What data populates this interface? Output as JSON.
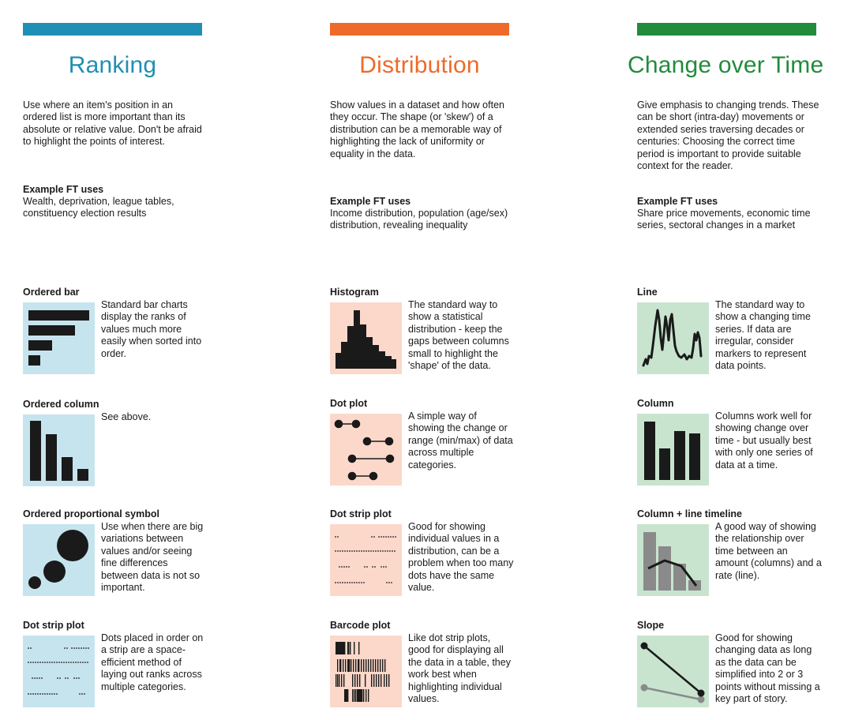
{
  "colors": {
    "ranking": "#1f8fb4",
    "distribution": "#ee6a2a",
    "change": "#228b3c",
    "ranking_bg": "#c6e4ee",
    "distribution_bg": "#fbd8ca",
    "change_bg": "#c8e4cf",
    "mark": "#1a1a1a",
    "mark_grey": "#8a8a8a"
  },
  "columns": [
    {
      "title": "Ranking",
      "description": "Use where an item's position in an ordered list is more important than its absolute or relative value. Don't be afraid to highlight the points of interest.",
      "uses_heading": "Example FT uses",
      "uses_text": "Wealth, deprivation, league tables, constituency election results",
      "charts": [
        {
          "name": "Ordered bar",
          "icon": "ordered-bar-icon",
          "description": "Standard bar charts display the ranks of values much more easily when sorted into order."
        },
        {
          "name": "Ordered column",
          "icon": "ordered-column-icon",
          "description": "See above."
        },
        {
          "name": "Ordered proportional symbol",
          "icon": "proportional-symbol-icon",
          "description": "Use when there are big variations between values and/or seeing fine differences between data is not so important."
        },
        {
          "name": "Dot strip plot",
          "icon": "dot-strip-plot-icon",
          "description": "Dots placed in order on a strip are a space-efficient method of laying out ranks across multiple categories."
        }
      ]
    },
    {
      "title": "Distribution",
      "description": "Show values in a dataset and how often they occur. The shape (or 'skew') of a distribution can be a memorable way of highlighting the lack of uniformity or equality in the data.",
      "uses_heading": "Example FT uses",
      "uses_text": "Income distribution, population (age/sex) distribution, revealing inequality",
      "charts": [
        {
          "name": "Histogram",
          "icon": "histogram-icon",
          "description": "The standard way to show a statistical distribution - keep the gaps between columns small to highlight the 'shape' of the data."
        },
        {
          "name": "Dot plot",
          "icon": "dot-plot-icon",
          "description": "A simple way of showing the change or range (min/max) of data across multiple categories."
        },
        {
          "name": "Dot strip plot",
          "icon": "dot-strip-plot-icon",
          "description": "Good for showing individual values in a distribution, can be a problem when too many dots have the same value."
        },
        {
          "name": "Barcode plot",
          "icon": "barcode-plot-icon",
          "description": "Like dot strip plots, good for displaying all the data in a table, they work best when highlighting individual values."
        }
      ]
    },
    {
      "title": "Change over Time",
      "description": "Give emphasis to changing trends. These can be short (intra-day) movements or extended series traversing decades or centuries: Choosing the correct time period is important to provide suitable context for the reader.",
      "uses_heading": "Example FT uses",
      "uses_text": "Share price movements, economic time series, sectoral changes in a market",
      "charts": [
        {
          "name": "Line",
          "icon": "line-chart-icon",
          "description": "The standard way to show a changing time series. If data are irregular, consider markers to represent data points."
        },
        {
          "name": "Column",
          "icon": "column-chart-icon",
          "description": "Columns work well for showing change over time - but usually best with only one series of data at a time."
        },
        {
          "name": "Column + line timeline",
          "icon": "column-line-timeline-icon",
          "description": "A good way of showing the relationship over time between an amount (columns) and a rate (line)."
        },
        {
          "name": "Slope",
          "icon": "slope-chart-icon",
          "description": "Good for showing changing data as long as the data can be simplified into 2 or 3 points without missing a key part of story."
        }
      ]
    }
  ]
}
